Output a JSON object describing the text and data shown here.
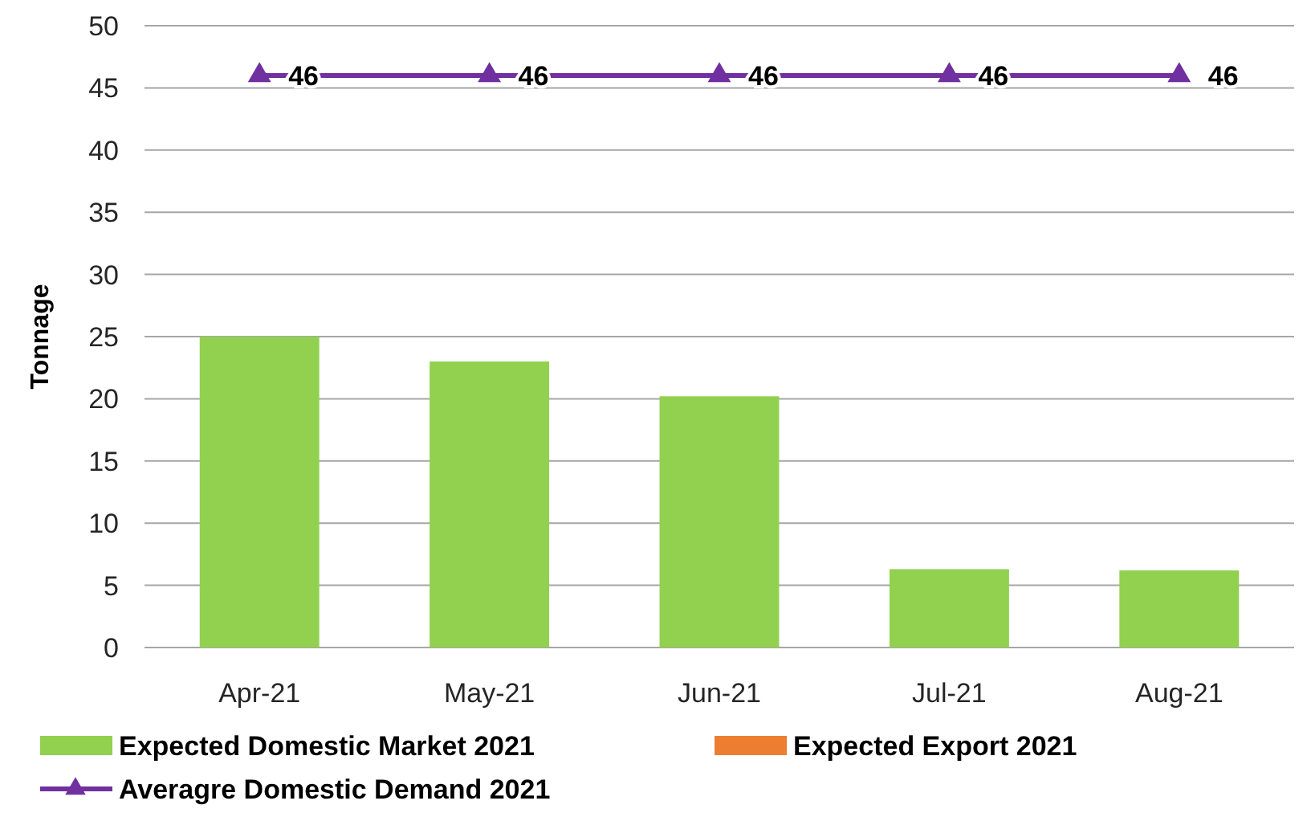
{
  "chart_data": {
    "type": "bar",
    "ylabel": "Tonnage",
    "categories": [
      "Apr-21",
      "May-21",
      "Jun-21",
      "Jul-21",
      "Aug-21"
    ],
    "series": [
      {
        "name": "Expected Domestic Market 2021",
        "color": "#92d050",
        "values": [
          25,
          23,
          20.2,
          6.3,
          6.2
        ]
      },
      {
        "name": "Expected  Export 2021",
        "color": "#ed7d31",
        "values": [
          0,
          0,
          0,
          0,
          0
        ]
      },
      {
        "name": "Averagre Domestic Demand 2021",
        "type": "line",
        "color": "#7030a0",
        "marker": "triangle",
        "values": [
          46,
          46,
          46,
          46,
          46
        ],
        "value_labels": [
          "46",
          "46",
          "46",
          "46",
          "46"
        ]
      }
    ],
    "ylim": [
      0,
      50
    ],
    "yticks": [
      0,
      5,
      10,
      15,
      20,
      25,
      30,
      35,
      40,
      45,
      50
    ],
    "grid": "y",
    "legend": "bottom"
  }
}
